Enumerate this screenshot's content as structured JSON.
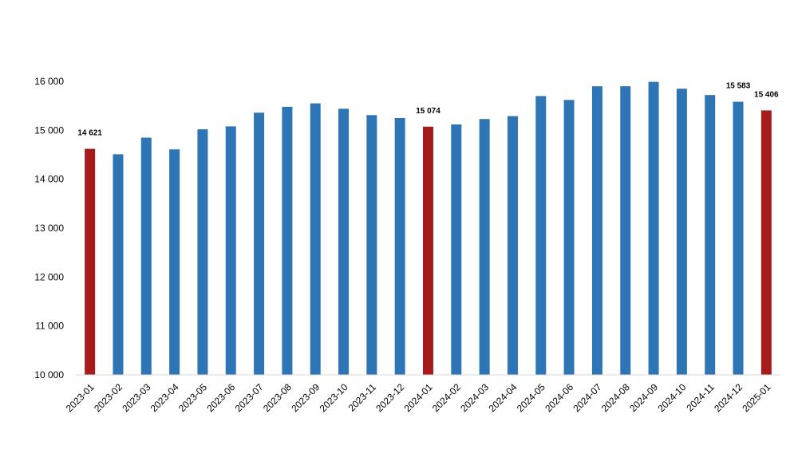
{
  "chart_data": {
    "type": "bar",
    "title": "",
    "xlabel": "",
    "ylabel": "",
    "ylim": [
      10000,
      16000
    ],
    "yticks": [
      10000,
      11000,
      12000,
      13000,
      14000,
      15000,
      16000
    ],
    "ytick_labels": [
      "10 000",
      "11 000",
      "12 000",
      "13 000",
      "14 000",
      "15 000",
      "16 000"
    ],
    "grid": false,
    "legend": "none",
    "categories": [
      "2023-01",
      "2023-02",
      "2023-03",
      "2023-04",
      "2023-05",
      "2023-06",
      "2023-07",
      "2023-08",
      "2023-09",
      "2023-10",
      "2023-11",
      "2023-12",
      "2024-01",
      "2024-02",
      "2024-03",
      "2024-04",
      "2024-05",
      "2024-06",
      "2024-07",
      "2024-08",
      "2024-09",
      "2024-10",
      "2024-11",
      "2024-12",
      "2025-01"
    ],
    "values": [
      14621,
      14510,
      14850,
      14610,
      15020,
      15080,
      15360,
      15480,
      15550,
      15440,
      15310,
      15250,
      15074,
      15120,
      15230,
      15290,
      15700,
      15620,
      15900,
      15900,
      15990,
      15850,
      15720,
      15583,
      15406
    ],
    "highlighted": [
      "2023-01",
      "2024-01",
      "2025-01"
    ],
    "data_labels": [
      {
        "category": "2023-01",
        "text": "14 621"
      },
      {
        "category": "2024-01",
        "text": "15 074"
      },
      {
        "category": "2024-12",
        "text": "15 583"
      },
      {
        "category": "2025-01",
        "text": "15 406"
      }
    ],
    "colors": {
      "default_bar": "#2e75b6",
      "highlight_bar": "#a61c1c",
      "axis": "#d9d9d9"
    }
  }
}
